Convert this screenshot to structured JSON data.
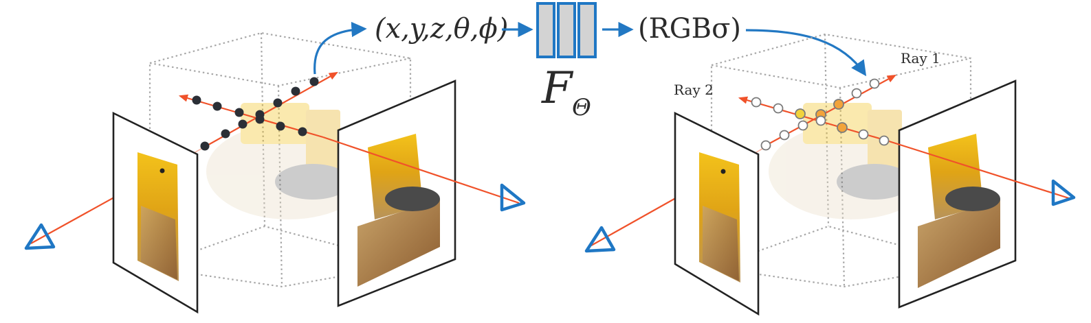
{
  "input_label": "(x,y,z,θ,ϕ)",
  "output_label": "(RGBσ)",
  "network": {
    "symbol": "F",
    "subscript": "Θ"
  },
  "rays": {
    "ray1_label": "Ray 1",
    "ray2_label": "Ray 2"
  },
  "colors": {
    "ray": "#f0522a",
    "camera": "#1f77c4",
    "arrow": "#2278c3",
    "sample_filled": "#2b2f36",
    "sample_color_a": "#f1d33c",
    "sample_color_b": "#f2a33a"
  }
}
